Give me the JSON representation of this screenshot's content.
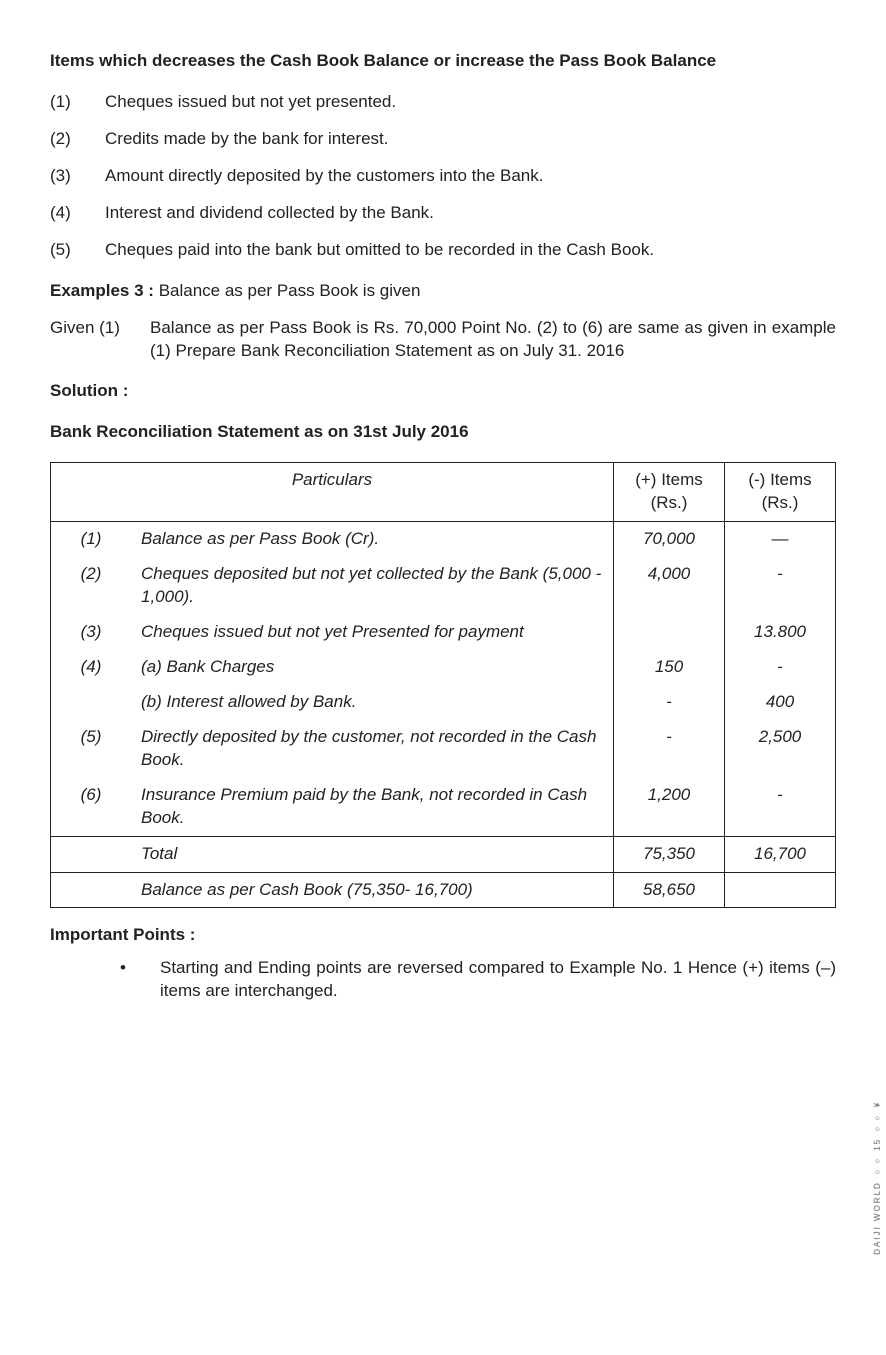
{
  "heading": "Items which decreases the Cash Book Balance or increase the Pass Book Balance",
  "list": [
    {
      "num": "(1)",
      "text": "Cheques issued but not yet presented."
    },
    {
      "num": "(2)",
      "text": "Credits made by the bank for interest."
    },
    {
      "num": "(3)",
      "text": "Amount directly deposited by the customers into the Bank."
    },
    {
      "num": "(4)",
      "text": "Interest and dividend collected by the Bank."
    },
    {
      "num": "(5)",
      "text": "Cheques paid into the bank but omitted to be recorded in the Cash Book."
    }
  ],
  "example": {
    "label": "Examples 3 :",
    "text": "Balance as per Pass Book is given"
  },
  "given": {
    "label": "Given (1)",
    "text": "Balance as per Pass Book is Rs. 70,000 Point No. (2) to (6) are same as given in example (1) Prepare Bank Reconciliation Statement as on July 31. 2016"
  },
  "solution_label": "Solution :",
  "subheading": "Bank Reconciliation Statement as on 31st July 2016",
  "table": {
    "head": {
      "particulars": "Particulars",
      "plus": "(+) Items (Rs.)",
      "minus": "(-) Items (Rs.)"
    },
    "rows": [
      {
        "num": "(1)",
        "desc": "Balance as per Pass Book (Cr).",
        "plus": "70,000",
        "minus": "—"
      },
      {
        "num": "(2)",
        "desc": "Cheques deposited but not yet collected by the Bank (5,000 - 1,000).",
        "plus": "4,000",
        "minus": "-"
      },
      {
        "num": "(3)",
        "desc": "Cheques issued but not yet Presented for payment",
        "plus": "",
        "minus": "13.800"
      },
      {
        "num": "(4)",
        "desc": "(a)  Bank Charges",
        "plus": "150",
        "minus": "-"
      },
      {
        "num": "",
        "desc": "(b)  Interest allowed by Bank.",
        "plus": "-",
        "minus": "400"
      },
      {
        "num": "(5)",
        "desc": "Directly deposited by the customer, not recorded in the Cash Book.",
        "plus": "-",
        "minus": "2,500"
      },
      {
        "num": "(6)",
        "desc": "Insurance Premium paid by the Bank, not recorded in Cash Book.",
        "plus": "1,200",
        "minus": "-"
      }
    ],
    "total": {
      "label": "Total",
      "plus": "75,350",
      "minus": "16,700"
    },
    "balance": {
      "label": "Balance as per Cash Book (75,350- 16,700)",
      "plus": "58,650",
      "minus": ""
    }
  },
  "important": {
    "label": "Important Points :",
    "bullet": "•",
    "text": "Starting and Ending points are reversed compared to Example No. 1 Hence (+) items (–) items are interchanged."
  },
  "side_text": "DAIJI WORLD ○○ 15 ○○ ¥"
}
